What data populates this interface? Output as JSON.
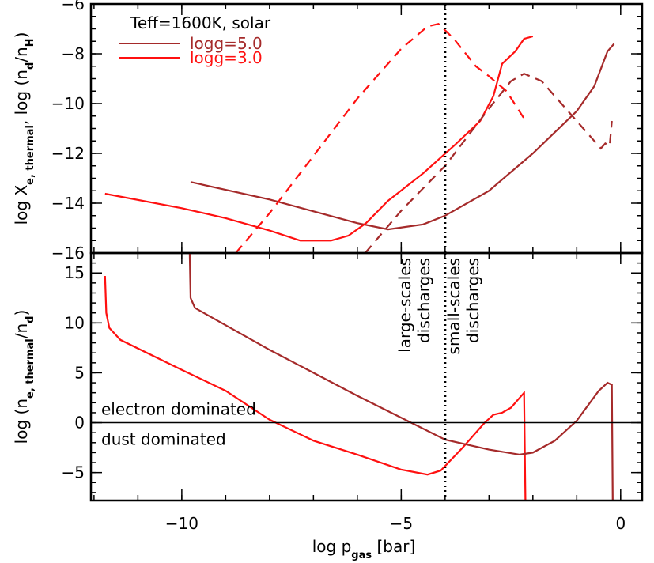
{
  "chart_data": [
    {
      "type": "line",
      "title": "Teff=1600K, solar",
      "ylabel": [
        {
          "text": "log X"
        },
        {
          "text": "e, thermal",
          "sub": true
        },
        {
          "text": ", log (n"
        },
        {
          "text": "d",
          "sub": true
        },
        {
          "text": "/n"
        },
        {
          "text": "H",
          "sub": true
        },
        {
          "text": ")"
        }
      ],
      "xlim": [
        -12.07,
        0.49
      ],
      "ylim": [
        -16,
        -6
      ],
      "xticks": [
        -10,
        -5,
        0
      ],
      "xminor": 1,
      "yticks": [
        {
          "value": -16,
          "label": "−16"
        },
        {
          "value": -14,
          "label": "−14"
        },
        {
          "value": -12,
          "label": "−12"
        },
        {
          "value": -10,
          "label": "−10"
        },
        {
          "value": -8,
          "label": "−8"
        },
        {
          "value": -6,
          "label": "−6"
        }
      ],
      "yminor": 0.5,
      "vline": -4,
      "legend": "upper left",
      "series": [
        {
          "name": "logg=5.0",
          "color": "#a52a2a",
          "linestyle": "solid",
          "x": [
            -9.8,
            -8,
            -6,
            -5.3,
            -4.5,
            -4,
            -3,
            -2,
            -1,
            -0.6,
            -0.3,
            -0.15
          ],
          "values": [
            -13.15,
            -13.85,
            -14.8,
            -15.05,
            -14.85,
            -14.5,
            -13.5,
            -12.0,
            -10.3,
            -9.3,
            -7.9,
            -7.6
          ]
        },
        {
          "name": "logg=3.0",
          "color": "#ff1010",
          "linestyle": "solid",
          "x": [
            -11.75,
            -10,
            -9,
            -8,
            -7.3,
            -6.6,
            -6.2,
            -5.8,
            -5.3,
            -4.5,
            -3.8,
            -3.2,
            -2.9,
            -2.7,
            -2.4,
            -2.2,
            -2
          ],
          "values": [
            -13.62,
            -14.2,
            -14.6,
            -15.1,
            -15.5,
            -15.5,
            -15.3,
            -14.8,
            -13.9,
            -12.8,
            -11.7,
            -10.7,
            -9.7,
            -8.4,
            -7.9,
            -7.4,
            -7.3
          ]
        },
        {
          "color": "#ff1010",
          "linestyle": "dashed",
          "x": [
            -8.77,
            -8,
            -7,
            -6,
            -5,
            -4.4,
            -4.15,
            -3.8,
            -3.3,
            -3,
            -2.6,
            -2.2
          ],
          "values": [
            -16,
            -14.4,
            -12.1,
            -9.8,
            -7.8,
            -6.9,
            -6.8,
            -7.4,
            -8.5,
            -8.9,
            -9.5,
            -10.6
          ]
        },
        {
          "color": "#a52a2a",
          "linestyle": "dashed",
          "x": [
            -5.82,
            -5,
            -4,
            -3,
            -2.5,
            -2.2,
            -1.8,
            -1.2,
            -0.6,
            -0.45,
            -0.35,
            -0.25,
            -0.2
          ],
          "values": [
            -16,
            -14.3,
            -12.5,
            -10.2,
            -9.1,
            -8.8,
            -9.1,
            -10.3,
            -11.5,
            -11.8,
            -11.6,
            -11.7,
            -10.7
          ]
        }
      ]
    },
    {
      "type": "line",
      "xlabel": [
        {
          "text": "log p"
        },
        {
          "text": "gas",
          "sub": true
        },
        {
          "text": " [bar]"
        }
      ],
      "ylabel": [
        {
          "text": "log (n"
        },
        {
          "text": "e, thermal",
          "sub": true
        },
        {
          "text": "/n"
        },
        {
          "text": "d",
          "sub": true
        },
        {
          "text": ")"
        }
      ],
      "xlim": [
        -12.07,
        0.49
      ],
      "ylim": [
        -7.8,
        17
      ],
      "xticks": [
        {
          "value": -10,
          "label": "−10"
        },
        {
          "value": -5,
          "label": "−5"
        },
        0
      ],
      "xminor": 1,
      "yticks": [
        {
          "value": -5,
          "label": "−5"
        },
        0,
        5,
        10,
        15
      ],
      "yminor": 1,
      "vline": -4,
      "hline": 0,
      "annotations": [
        {
          "lines": [
            "electron dominated"
          ]
        },
        {
          "lines": [
            "dust dominated"
          ]
        },
        {
          "lines": [
            "large-scales",
            "discharges"
          ]
        },
        {
          "lines": [
            "small-scales",
            "discharges"
          ]
        }
      ],
      "series": [
        {
          "color": "#ff1010",
          "linestyle": "solid",
          "x": [
            -11.75,
            -11.72,
            -11.65,
            -11.4,
            -10,
            -9,
            -8,
            -7,
            -6,
            -5,
            -4.4,
            -4.1,
            -3.6,
            -3.1,
            -2.9,
            -2.7,
            -2.5,
            -2.2,
            -2.17
          ],
          "values": [
            14.7,
            11,
            9.5,
            8.3,
            5.3,
            3.2,
            0.3,
            -1.8,
            -3.2,
            -4.7,
            -5.2,
            -4.8,
            -2.5,
            0,
            0.8,
            1,
            1.5,
            3,
            -7.8
          ]
        },
        {
          "color": "#a52a2a",
          "linestyle": "solid",
          "x": [
            -9.82,
            -9.8,
            -9.7,
            -9.5,
            -8,
            -6,
            -4,
            -3,
            -2.3,
            -2,
            -1.5,
            -1,
            -0.5,
            -0.3,
            -0.2,
            -0.18
          ],
          "values": [
            17,
            12.5,
            11.5,
            11,
            7.3,
            2.7,
            -1.7,
            -2.7,
            -3.2,
            -3,
            -1.8,
            0.2,
            3.2,
            4,
            3.8,
            -7.8
          ]
        }
      ]
    }
  ]
}
